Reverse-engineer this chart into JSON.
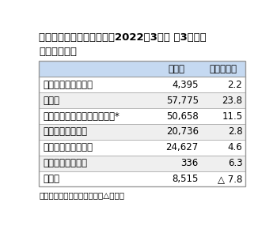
{
  "title_line1": "ゼビオホールディングス、2022年3月期 第3四半期",
  "title_line2": "部門別売上高",
  "header": [
    "",
    "売上高",
    "（増減率）"
  ],
  "rows": [
    [
      "ウィンタースポーツ",
      "4,395",
      "2.2"
    ],
    [
      "ゴルフ",
      "57,775",
      "23.8"
    ],
    [
      "一般競技スポーツ・シューズ*",
      "50,658",
      "11.5"
    ],
    [
      "スポーツアパレル",
      "20,736",
      "2.8"
    ],
    [
      "アウトドア・その他",
      "24,627",
      "4.6"
    ],
    [
      "ファッション衣料",
      "336",
      "6.3"
    ],
    [
      "その他",
      "8,515",
      "△ 7.8"
    ]
  ],
  "footnote": "単位は百万円。増減率は％。△は減。",
  "header_bg": "#c5d9f1",
  "row_bg_odd": "#efefef",
  "row_bg_even": "#ffffff",
  "border_color": "#999999",
  "text_color": "#000000",
  "title_fontsize": 9.5,
  "header_fontsize": 8.5,
  "row_fontsize": 8.5,
  "footnote_fontsize": 7.5
}
